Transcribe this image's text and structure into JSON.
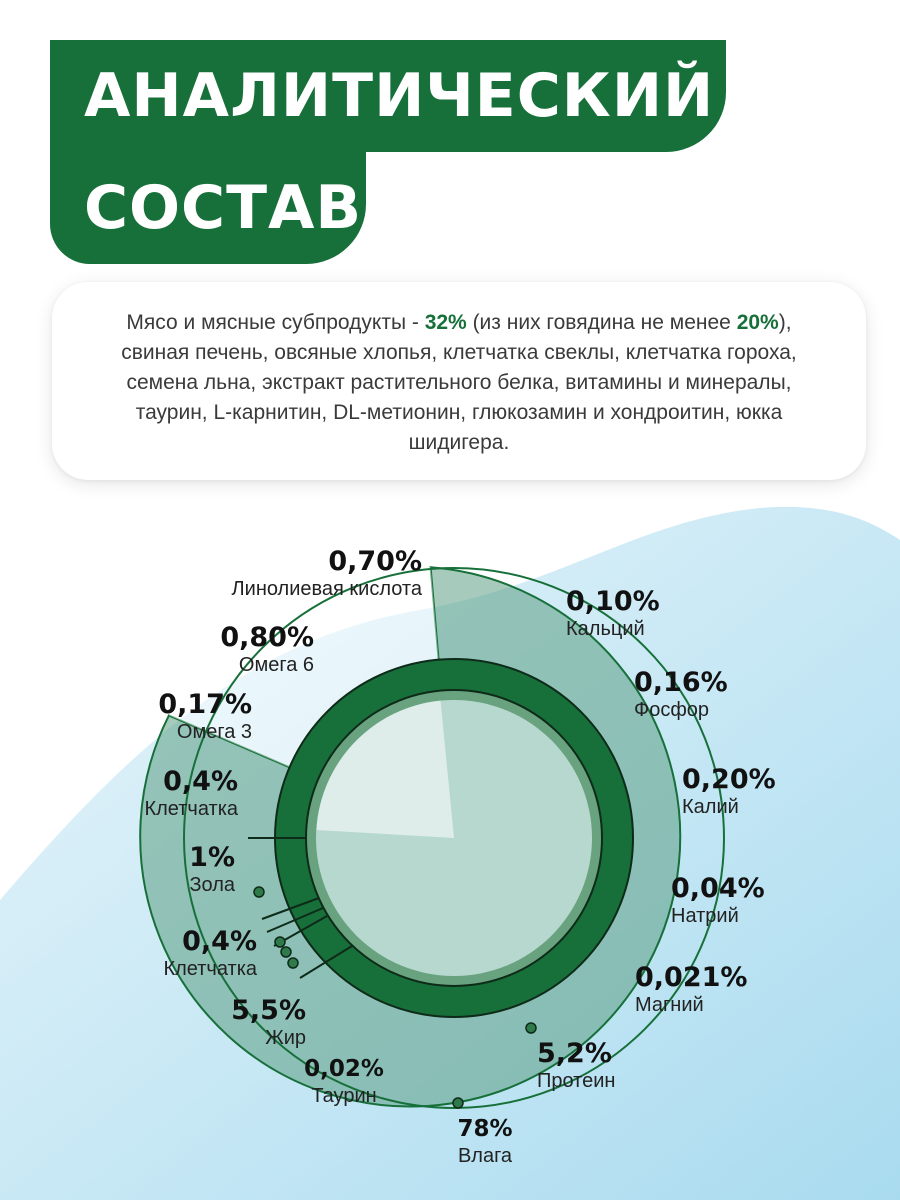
{
  "header": {
    "title_line1": "АНАЛИТИЧЕСКИЙ",
    "title_line2": "СОСТАВ"
  },
  "composition": {
    "part1": "Мясо и мясные субпродукты - ",
    "hl1": "32%",
    "part2": " (из них говядина не менее ",
    "hl2": "20%",
    "part3": "), свиная печень, овсяные хлопья, клетчатка свеклы, клетчатка гороха, семена льна, экстракт растительного белка, витамины и минералы, таурин, L-карнитин, DL-метионин, глюкозамин и хондроитин, юкка шидигера."
  },
  "colors": {
    "brand_green": "#17703a",
    "outer_ring": "#8fbfae",
    "center": "#b7d8cf",
    "wave": "#bfe3f2"
  },
  "chart_data": {
    "type": "pie",
    "units": "%",
    "labels": [
      {
        "value": "0,70%",
        "name": "Линолиевая кислота"
      },
      {
        "value": "0,80%",
        "name": "Омега 6"
      },
      {
        "value": "0,17%",
        "name": "Омега 3"
      },
      {
        "value": "0,4%",
        "name": "Клетчатка"
      },
      {
        "value": "1%",
        "name": "Зола"
      },
      {
        "value": "0,4%",
        "name": "Клетчатка"
      },
      {
        "value": "5,5%",
        "name": "Жир"
      },
      {
        "value": "0,02%",
        "name": "Таурин"
      },
      {
        "value": "78%",
        "name": "Влага"
      },
      {
        "value": "5,2%",
        "name": "Протеин"
      },
      {
        "value": "0,021%",
        "name": "Магний"
      },
      {
        "value": "0,04%",
        "name": "Натрий"
      },
      {
        "value": "0,20%",
        "name": "Калий"
      },
      {
        "value": "0,16%",
        "name": "Фосфор"
      },
      {
        "value": "0,10%",
        "name": "Кальций"
      }
    ],
    "inner_ring": [
      {
        "name": "Влага",
        "value": 78
      },
      {
        "name": "Зола",
        "value": 1
      },
      {
        "name": "Клетчатка",
        "value": 0.4
      },
      {
        "name": "Жир",
        "value": 5.5
      },
      {
        "name": "Протеин",
        "value": 5.2
      }
    ]
  }
}
